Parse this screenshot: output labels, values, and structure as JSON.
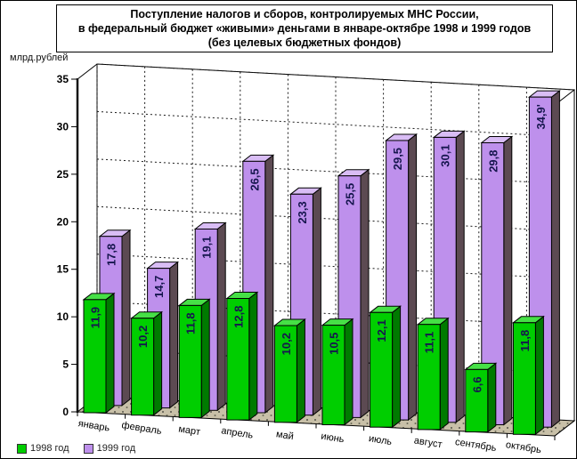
{
  "title": {
    "line1": "Поступление налогов и сборов, контролируемых МНС России,",
    "line2": "в федеральный бюджет «живыми» деньгами в январе-октябре 1998 и 1999 годов",
    "line3": "(без целевых бюджетных фондов)"
  },
  "axis": {
    "ylabel": "млрд.рублей"
  },
  "chart_data": {
    "type": "bar",
    "subtype": "3d-grouped-column",
    "title": "Поступление налогов и сборов, контролируемых МНС России, в федеральный бюджет «живыми» деньгами в январе-октябре 1998 и 1999 годов (без целевых бюджетных фондов)",
    "ylabel": "млрд.рублей",
    "ylim": [
      0,
      35
    ],
    "ytick_step": 5,
    "grid": "dashed",
    "legend_position": "bottom-left",
    "categories": [
      "январь",
      "февраль",
      "март",
      "апрель",
      "май",
      "июнь",
      "июль",
      "август",
      "сентябрь",
      "октябрь"
    ],
    "series": [
      {
        "name": "1998 год",
        "color": "#00CE00",
        "side_color": "#007A00",
        "top_color": "#46E046",
        "values": [
          11.9,
          10.2,
          11.8,
          12.8,
          10.2,
          10.5,
          12.1,
          11.1,
          6.6,
          11.8
        ],
        "labels": [
          "11,9",
          "10,2",
          "11,8",
          "12,8",
          "10,2",
          "10,5",
          "12,1",
          "11,1",
          "6,6",
          "11,8"
        ]
      },
      {
        "name": "1999 год",
        "color": "#BE90EC",
        "side_color": "#5C4A52",
        "top_color": "#D9BDF5",
        "values": [
          17.8,
          14.7,
          19.1,
          26.5,
          23.3,
          25.5,
          29.5,
          30.1,
          29.8,
          34.9
        ],
        "labels": [
          "17,8",
          "14,7",
          "19,1",
          "26,5",
          "23,3",
          "25,5",
          "29,5",
          "30,1",
          "29,8",
          "34,9'"
        ]
      }
    ],
    "value_label_color": "#16164e",
    "wall_color": "#ffffff",
    "floor_color": "#C8C0A8",
    "grid_color": "#1a1a1a"
  }
}
